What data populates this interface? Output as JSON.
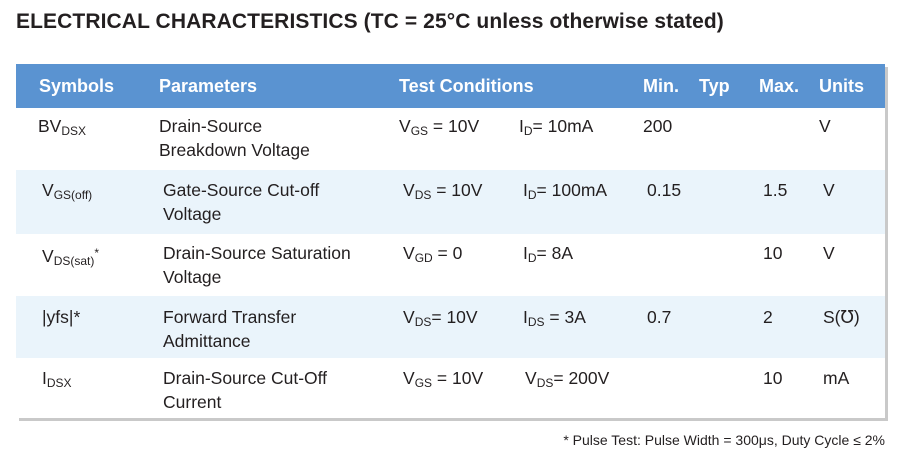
{
  "title": "ELECTRICAL CHARACTERISTICS (TC = 25°C unless otherwise stated)",
  "header": {
    "symbols": "Symbols",
    "parameters": "Parameters",
    "test_conditions": "Test Conditions",
    "min": "Min.",
    "typ": "Typ",
    "max": "Max.",
    "units": "Units"
  },
  "rows": [
    {
      "symbol_main": "BV",
      "symbol_sub": "DSX",
      "symbol_suffix": "",
      "param_line1": "Drain-Source",
      "param_line2": "Breakdown Voltage",
      "cond1_main": "V",
      "cond1_sub": "GS",
      "cond1_value": " = 10V",
      "cond2_main": "I",
      "cond2_sub": "D",
      "cond2_value": "= 10mA",
      "min": "200",
      "typ": "",
      "max": "",
      "units": "V"
    },
    {
      "symbol_main": "V",
      "symbol_sub": "GS(off)",
      "symbol_suffix": "",
      "param_line1": "Gate-Source Cut-off",
      "param_line2": "Voltage",
      "cond1_main": "V",
      "cond1_sub": "DS",
      "cond1_value": " = 10V",
      "cond2_main": "I",
      "cond2_sub": "D",
      "cond2_value": "= 100mA",
      "min": "0.15",
      "typ": "",
      "max": "1.5",
      "units": "V"
    },
    {
      "symbol_main": "V",
      "symbol_sub": "DS(sat)",
      "symbol_suffix": "*",
      "param_line1": "Drain-Source Saturation",
      "param_line2": "Voltage",
      "cond1_main": "V",
      "cond1_sub": "GD",
      "cond1_value": " = 0",
      "cond2_main": "I",
      "cond2_sub": "D",
      "cond2_value": "= 8A",
      "min": "",
      "typ": "",
      "max": "10",
      "units": "V"
    },
    {
      "symbol_main": "|yfs|*",
      "symbol_sub": "",
      "symbol_suffix": "",
      "param_line1": "Forward Transfer",
      "param_line2": "Admittance",
      "cond1_main": "V",
      "cond1_sub": "DS",
      "cond1_value": "= 10V",
      "cond2_main": "I",
      "cond2_sub": "DS",
      "cond2_value": " = 3A",
      "min": "0.7",
      "typ": "",
      "max": "2",
      "units": "S(℧)"
    },
    {
      "symbol_main": "I",
      "symbol_sub": "DSX",
      "symbol_suffix": "",
      "param_line1": "Drain-Source Cut-Off",
      "param_line2": "Current",
      "cond1_main": "V",
      "cond1_sub": "GS",
      "cond1_value": " = 10V",
      "cond2_main": "V",
      "cond2_sub": "DS",
      "cond2_value": "= 200V",
      "min": "",
      "typ": "",
      "max": "10",
      "units": "mA"
    }
  ],
  "footnote": "* Pulse Test: Pulse Width = 300μs, Duty Cycle ≤ 2%"
}
